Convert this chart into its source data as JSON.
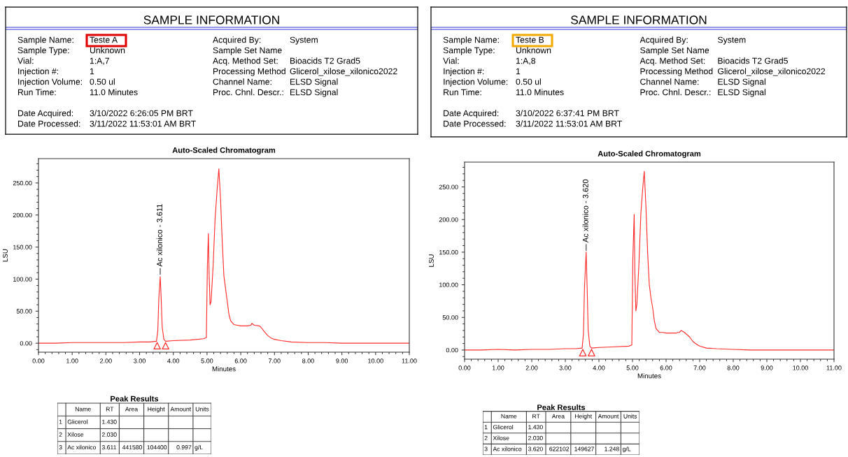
{
  "chart_data": [
    {
      "type": "other",
      "title": "SAMPLE INFORMATION",
      "annotations": [
        "Sample Name:",
        "Teste A",
        "Sample Type:",
        "Unknown",
        "Vial:",
        "1:A,7",
        "Injection #:",
        "1",
        "Injection Volume:",
        "0.50 ul",
        "Run Time:",
        "11.0 Minutes",
        "Date Acquired:",
        "3/10/2022 6:26:05 PM BRT",
        "Date Processed:",
        "3/11/2022 11:53:01 AM BRT",
        "Acquired By:",
        "System",
        "Sample Set Name",
        "Acq. Method Set:",
        "Bioacids T2 Grad5",
        "Processing Method",
        "Glicerol_xilose_xilonico2022",
        "Channel Name:",
        "ELSD Signal",
        "Proc. Chnl. Descr.:",
        "ELSD Signal"
      ]
    },
    {
      "type": "other",
      "title": "SAMPLE INFORMATION",
      "annotations": [
        "Sample Name:",
        "Teste B",
        "Sample Type:",
        "Unknown",
        "Vial:",
        "1:A,8",
        "Injection #:",
        "1",
        "Injection Volume:",
        "0.50 ul",
        "Run Time:",
        "11.0 Minutes",
        "Date Acquired:",
        "3/10/2022 6:37:41 PM BRT",
        "Date Processed:",
        "3/11/2022 11:53:01 AM BRT",
        "Acquired By:",
        "System",
        "Sample Set Name",
        "Acq. Method Set:",
        "Bioacids T2 Grad5",
        "Processing Method",
        "Glicerol_xilose_xilonico2022",
        "Channel Name:",
        "ELSD Signal",
        "Proc. Chnl. Descr.:",
        "ELSD Signal"
      ]
    },
    {
      "type": "line",
      "title": "Auto-Scaled Chromatogram",
      "xlabel": "Minutes",
      "ylabel": "LSU",
      "xlim": [
        0,
        11
      ],
      "ylim": [
        -14,
        288
      ],
      "xticks": [
        {
          "value": 0,
          "label": "0.00"
        },
        {
          "value": 1,
          "label": "1.00"
        },
        {
          "value": 2,
          "label": "2.00"
        },
        {
          "value": 3,
          "label": "3.00"
        },
        {
          "value": 4,
          "label": "4.00"
        },
        {
          "value": 5,
          "label": "5.00"
        },
        {
          "value": 6,
          "label": "6.00"
        },
        {
          "value": 7,
          "label": "7.00"
        },
        {
          "value": 8,
          "label": "8.00"
        },
        {
          "value": 9,
          "label": "9.00"
        },
        {
          "value": 10,
          "label": "10.00"
        },
        {
          "value": 11,
          "label": "11.00"
        }
      ],
      "yticks": [
        {
          "value": 0,
          "label": "0.00"
        },
        {
          "value": 50,
          "label": "50.00"
        },
        {
          "value": 100,
          "label": "100.00"
        },
        {
          "value": 150,
          "label": "150.00"
        },
        {
          "value": 200,
          "label": "200.00"
        },
        {
          "value": 250,
          "label": "250.00"
        }
      ],
      "annotations": [
        {
          "text": "Ac xilonico - 3.611",
          "x": 3.611,
          "y": 104.4
        }
      ],
      "series": [
        {
          "type": "line",
          "color": "#ff2a2a",
          "x": [
            0,
            0.5,
            1,
            1.5,
            2,
            2.5,
            3,
            3.3,
            3.5,
            3.54,
            3.57,
            3.611,
            3.64,
            3.67,
            3.72,
            3.77,
            4,
            4.5,
            4.9,
            4.98,
            5.01,
            5.04,
            5.06,
            5.09,
            5.12,
            5.18,
            5.24,
            5.3,
            5.35,
            5.4,
            5.45,
            5.5,
            5.55,
            5.6,
            5.65,
            5.7,
            5.8,
            5.9,
            6.0,
            6.2,
            6.3,
            6.33,
            6.4,
            6.55,
            6.6,
            6.7,
            6.8,
            6.9,
            7.0,
            7.2,
            7.5,
            8,
            8.5,
            9,
            10,
            11
          ],
          "values": [
            0,
            0,
            1,
            1,
            1,
            1,
            2,
            2,
            3,
            20,
            70,
            104,
            70,
            25,
            6,
            3,
            4,
            5,
            7,
            9,
            120,
            171,
            110,
            60,
            65,
            120,
            195,
            240,
            272,
            225,
            160,
            105,
            85,
            65,
            45,
            35,
            29,
            28,
            27,
            27,
            28,
            31,
            28,
            27,
            25,
            18,
            12,
            8,
            6,
            4,
            2,
            1,
            1,
            0,
            0,
            0
          ]
        },
        {
          "type": "scatter",
          "color": "#ff2a2a",
          "marker": "triangle",
          "x": [
            3.52,
            3.77
          ],
          "values": [
            -4,
            -4
          ]
        }
      ]
    },
    {
      "type": "line",
      "title": "Auto-Scaled Chromatogram",
      "xlabel": "Minutes",
      "ylabel": "LSU",
      "xlim": [
        0,
        11
      ],
      "ylim": [
        -14,
        288
      ],
      "xticks": [
        {
          "value": 0,
          "label": "0.00"
        },
        {
          "value": 1,
          "label": "1.00"
        },
        {
          "value": 2,
          "label": "2.00"
        },
        {
          "value": 3,
          "label": "3.00"
        },
        {
          "value": 4,
          "label": "4.00"
        },
        {
          "value": 5,
          "label": "5.00"
        },
        {
          "value": 6,
          "label": "6.00"
        },
        {
          "value": 7,
          "label": "7.00"
        },
        {
          "value": 8,
          "label": "8.00"
        },
        {
          "value": 9,
          "label": "9.00"
        },
        {
          "value": 10,
          "label": "10.00"
        },
        {
          "value": 11,
          "label": "11.00"
        }
      ],
      "yticks": [
        {
          "value": 0,
          "label": "0.00"
        },
        {
          "value": 50,
          "label": "50.00"
        },
        {
          "value": 100,
          "label": "100.00"
        },
        {
          "value": 150,
          "label": "150.00"
        },
        {
          "value": 200,
          "label": "200.00"
        },
        {
          "value": 250,
          "label": "250.00"
        }
      ],
      "annotations": [
        {
          "text": "Ac xilonico - 3.620",
          "x": 3.62,
          "y": 149.6
        }
      ],
      "series": [
        {
          "type": "line",
          "color": "#ff2a2a",
          "x": [
            0,
            0.5,
            1,
            1.5,
            2,
            2.5,
            3,
            3.3,
            3.5,
            3.54,
            3.57,
            3.62,
            3.65,
            3.68,
            3.73,
            3.78,
            4,
            4.5,
            4.9,
            4.98,
            5.01,
            5.05,
            5.07,
            5.1,
            5.13,
            5.19,
            5.25,
            5.3,
            5.35,
            5.4,
            5.45,
            5.5,
            5.55,
            5.6,
            5.65,
            5.7,
            5.8,
            5.9,
            6.0,
            6.2,
            6.3,
            6.35,
            6.4,
            6.45,
            6.55,
            6.7,
            6.8,
            6.9,
            7.0,
            7.2,
            7.5,
            8,
            8.5,
            9,
            10,
            11
          ],
          "values": [
            0,
            0,
            1,
            0,
            1,
            1,
            2,
            2,
            3,
            25,
            95,
            150,
            95,
            30,
            6,
            3,
            4,
            5,
            6,
            8,
            140,
            208,
            120,
            60,
            70,
            130,
            210,
            245,
            274,
            220,
            150,
            100,
            80,
            65,
            45,
            33,
            27,
            27,
            26,
            26,
            26,
            27,
            27,
            30,
            27,
            20,
            13,
            9,
            6,
            3,
            2,
            1,
            0,
            0,
            0,
            0
          ]
        },
        {
          "type": "scatter",
          "color": "#ff2a2a",
          "marker": "triangle",
          "x": [
            3.52,
            3.78
          ],
          "values": [
            -4,
            -4
          ]
        }
      ]
    },
    {
      "type": "other",
      "title": "Peak Results",
      "categories": [
        null,
        "Name",
        "RT",
        "Area",
        "Height",
        "Amount",
        "Units"
      ],
      "cells": [
        [
          "1",
          "Glicerol",
          "1.430",
          null,
          null,
          null,
          null
        ],
        [
          "2",
          "Xilose",
          "2.030",
          null,
          null,
          null,
          null
        ],
        [
          "3",
          "Ac xilonico",
          "3.611",
          "441580",
          "104400",
          "0.997",
          "g/L"
        ]
      ]
    },
    {
      "type": "other",
      "title": "Peak Results",
      "categories": [
        null,
        "Name",
        "RT",
        "Area",
        "Height",
        "Amount",
        "Units"
      ],
      "cells": [
        [
          "1",
          "Glicerol",
          "1.430",
          null,
          null,
          null,
          null
        ],
        [
          "2",
          "Xilose",
          "2.030",
          null,
          null,
          null,
          null
        ],
        [
          "3",
          "Ac xilonico",
          "3.620",
          "622102",
          "149627",
          "1.248",
          "g/L"
        ]
      ]
    }
  ]
}
